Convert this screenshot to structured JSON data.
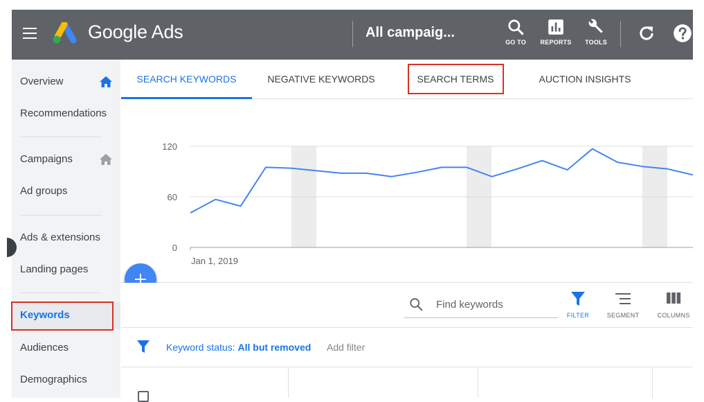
{
  "header": {
    "app_name": "Google Ads",
    "campaign_title": "All campaig...",
    "tools": [
      {
        "label": "GO TO",
        "icon": "search-icon"
      },
      {
        "label": "REPORTS",
        "icon": "reports-icon"
      },
      {
        "label": "TOOLS",
        "icon": "wrench-icon"
      }
    ],
    "refresh_icon": "refresh-icon",
    "help_icon": "help-icon"
  },
  "sidebar": {
    "items": [
      {
        "label": "Overview",
        "icon": "home-icon",
        "icon_color": "#1a73e8"
      },
      {
        "label": "Recommendations"
      },
      {
        "label": "Campaigns",
        "icon": "home-icon",
        "icon_color": "#9aa0a6"
      },
      {
        "label": "Ad groups"
      },
      {
        "label": "Ads & extensions"
      },
      {
        "label": "Landing pages"
      },
      {
        "label": "Keywords",
        "active": true
      },
      {
        "label": "Audiences"
      },
      {
        "label": "Demographics"
      }
    ]
  },
  "tabs": [
    {
      "label": "SEARCH KEYWORDS",
      "active": true
    },
    {
      "label": "NEGATIVE KEYWORDS"
    },
    {
      "label": "SEARCH TERMS",
      "highlighted": true
    },
    {
      "label": "AUCTION INSIGHTS"
    }
  ],
  "chart_data": {
    "type": "line",
    "x_start_label": "Jan 1, 2019",
    "yticks": [
      "120",
      "60",
      "0"
    ],
    "ylim": [
      0,
      120
    ],
    "values": [
      41,
      57,
      49,
      95,
      94,
      91,
      88,
      88,
      84,
      89,
      95,
      95,
      84,
      93,
      103,
      92,
      117,
      101,
      96,
      93,
      86
    ],
    "grid": true,
    "line_color": "#4285f4"
  },
  "toolbar": {
    "search_placeholder": "Find keywords",
    "buttons": [
      {
        "label": "FILTER",
        "icon": "filter-icon",
        "active": true
      },
      {
        "label": "SEGMENT",
        "icon": "segment-icon"
      },
      {
        "label": "COLUMNS",
        "icon": "columns-icon"
      }
    ]
  },
  "filter_bar": {
    "status_label": "Keyword status:",
    "status_value": "All but removed",
    "add_filter": "Add filter"
  },
  "colors": {
    "header_bg": "#5f6368",
    "accent": "#1a73e8",
    "highlight_outline": "#d93025"
  }
}
